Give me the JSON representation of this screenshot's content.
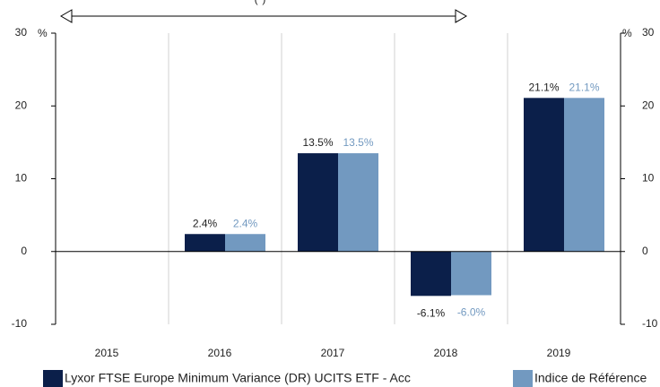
{
  "chart_data": {
    "type": "bar",
    "annotation": "(*)",
    "y_label": "%",
    "y2_label": "%",
    "categories": [
      "2015",
      "2016",
      "2017",
      "2018",
      "2019"
    ],
    "series": [
      {
        "name": "Lyxor FTSE Europe Minimum Variance (DR) UCITS ETF - Acc",
        "color": "#0b1f4a",
        "values": [
          null,
          2.4,
          13.5,
          -6.1,
          21.1
        ],
        "value_labels": [
          null,
          "2.4%",
          "13.5%",
          "-6.1%",
          "21.1%"
        ]
      },
      {
        "name": "Indice de Référence",
        "color": "#7299c0",
        "values": [
          null,
          2.4,
          13.5,
          -6.0,
          21.1
        ],
        "value_labels": [
          null,
          "2.4%",
          "13.5%",
          "-6.0%",
          "21.1%"
        ]
      }
    ],
    "ylim": [
      -10,
      30
    ],
    "yticks": [
      -10,
      0,
      10,
      20,
      30
    ],
    "y2lim": [
      -10,
      30
    ],
    "y2ticks": [
      -10,
      0,
      10,
      20,
      30
    ],
    "grid": true,
    "legend": "bottom"
  }
}
